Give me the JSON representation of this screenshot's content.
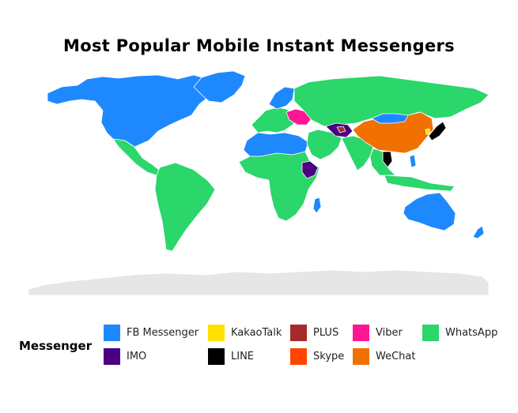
{
  "title": "Most Popular Mobile Instant Messengers",
  "legend": {
    "title": "Messenger",
    "items": [
      {
        "label": "FB Messenger",
        "color": "#1E88FF"
      },
      {
        "label": "KakaoTalk",
        "color": "#FFE000"
      },
      {
        "label": "PLUS",
        "color": "#A52A2A"
      },
      {
        "label": "Viber",
        "color": "#FF1493"
      },
      {
        "label": "WhatsApp",
        "color": "#2BD66A"
      },
      {
        "label": "IMO",
        "color": "#4B0082"
      },
      {
        "label": "LINE",
        "color": "#000000"
      },
      {
        "label": "Skype",
        "color": "#FF4500"
      },
      {
        "label": "WeChat",
        "color": "#F07000"
      }
    ]
  },
  "no_data_color": "#E6E6E6",
  "regions": [
    {
      "name": "North America",
      "messenger": "FB Messenger"
    },
    {
      "name": "Greenland",
      "messenger": "FB Messenger"
    },
    {
      "name": "Mexico & Central America",
      "messenger": "WhatsApp"
    },
    {
      "name": "South America",
      "messenger": "WhatsApp"
    },
    {
      "name": "Europe",
      "messenger": "WhatsApp"
    },
    {
      "name": "Scandinavia",
      "messenger": "FB Messenger"
    },
    {
      "name": "Eastern Europe",
      "messenger": "Viber"
    },
    {
      "name": "Russia",
      "messenger": "WhatsApp"
    },
    {
      "name": "North Africa",
      "messenger": "FB Messenger"
    },
    {
      "name": "Sub-Saharan Africa",
      "messenger": "WhatsApp"
    },
    {
      "name": "Ethiopia",
      "messenger": "IMO"
    },
    {
      "name": "Middle East",
      "messenger": "WhatsApp"
    },
    {
      "name": "Central Asia",
      "messenger": "IMO"
    },
    {
      "name": "Uzbekistan",
      "messenger": "PLUS"
    },
    {
      "name": "India",
      "messenger": "WhatsApp"
    },
    {
      "name": "China",
      "messenger": "WeChat"
    },
    {
      "name": "Mongolia",
      "messenger": "FB Messenger"
    },
    {
      "name": "Japan",
      "messenger": "LINE"
    },
    {
      "name": "South Korea",
      "messenger": "KakaoTalk"
    },
    {
      "name": "Thailand",
      "messenger": "LINE"
    },
    {
      "name": "Southeast Asia",
      "messenger": "WhatsApp"
    },
    {
      "name": "Philippines",
      "messenger": "FB Messenger"
    },
    {
      "name": "Australia",
      "messenger": "FB Messenger"
    },
    {
      "name": "New Zealand",
      "messenger": "FB Messenger"
    },
    {
      "name": "Madagascar",
      "messenger": "FB Messenger"
    },
    {
      "name": "Antarctica",
      "messenger": null
    }
  ]
}
